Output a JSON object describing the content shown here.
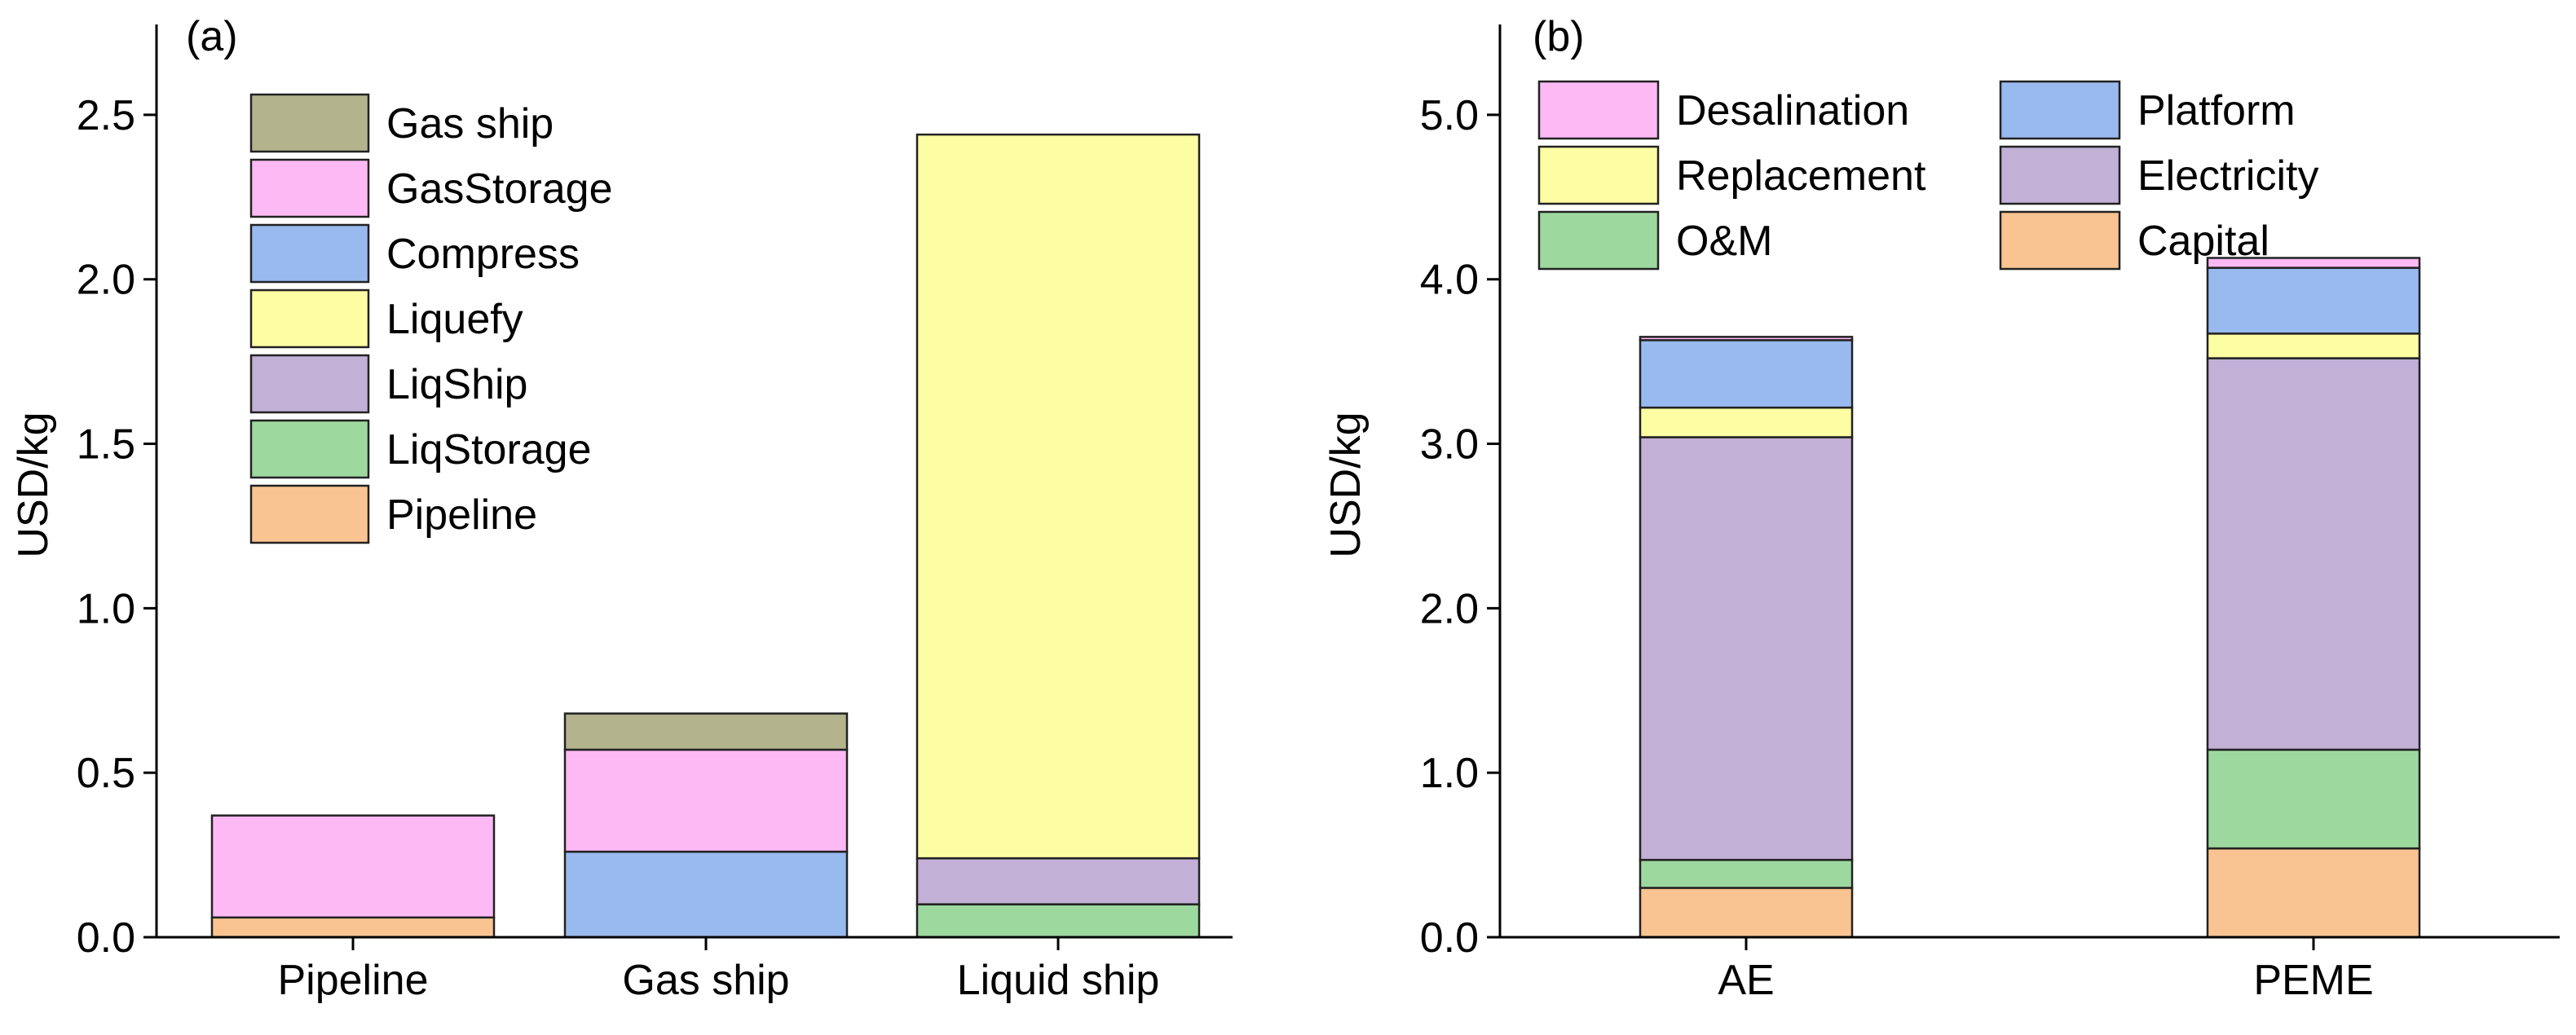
{
  "colors": {
    "Gas ship": "#b3b38d",
    "GasStorage": "#fdb9f4",
    "Compress": "#99baef",
    "Liquefy": "#fdfda3",
    "LiqShip": "#c2b0d6",
    "LiqStorage": "#9dd99f",
    "Pipeline": "#f9c491",
    "Desalination": "#fdb9f4",
    "Replacement": "#fdfda3",
    "O&M": "#9dd99f",
    "Platform": "#99baef",
    "Electricity": "#c2b0d6",
    "Capital": "#f9c491",
    "axis": "#000000",
    "bar_edge": "#222222"
  },
  "chart_data": [
    {
      "panel": "a",
      "panel_label": "(a)",
      "type": "bar",
      "stacked": true,
      "title": "",
      "xlabel": "",
      "ylabel": "USD/kg",
      "ylim": [
        0,
        2.75
      ],
      "yticks": [
        0.0,
        0.5,
        1.0,
        1.5,
        2.0,
        2.5
      ],
      "ytick_labels": [
        "0.0",
        "0.5",
        "1.0",
        "1.5",
        "2.0",
        "2.5"
      ],
      "categories": [
        "Pipeline",
        "Gas ship",
        "Liquid ship"
      ],
      "series": [
        {
          "name": "Pipeline",
          "values": [
            0.06,
            0.0,
            0.0
          ]
        },
        {
          "name": "LiqStorage",
          "values": [
            0.0,
            0.0,
            0.1
          ]
        },
        {
          "name": "LiqShip",
          "values": [
            0.0,
            0.0,
            0.14
          ]
        },
        {
          "name": "Liquefy",
          "values": [
            0.0,
            0.0,
            2.2
          ]
        },
        {
          "name": "Compress",
          "values": [
            0.0,
            0.26,
            0.0
          ]
        },
        {
          "name": "GasStorage",
          "values": [
            0.31,
            0.31,
            0.0
          ]
        },
        {
          "name": "Gas ship",
          "values": [
            0.0,
            0.11,
            0.0
          ]
        }
      ],
      "legend": [
        "Gas ship",
        "GasStorage",
        "Compress",
        "Liquefy",
        "LiqShip",
        "LiqStorage",
        "Pipeline"
      ],
      "legend_position": "top-left"
    },
    {
      "panel": "b",
      "panel_label": "(b)",
      "type": "bar",
      "stacked": true,
      "title": "",
      "xlabel": "",
      "ylabel": "USD/kg",
      "ylim": [
        0,
        5.5
      ],
      "yticks": [
        0.0,
        1.0,
        2.0,
        3.0,
        4.0,
        5.0
      ],
      "ytick_labels": [
        "0.0",
        "1.0",
        "2.0",
        "3.0",
        "4.0",
        "5.0"
      ],
      "categories": [
        "AE",
        "PEME"
      ],
      "series": [
        {
          "name": "Capital",
          "values": [
            0.3,
            0.54
          ]
        },
        {
          "name": "O&M",
          "values": [
            0.17,
            0.6
          ]
        },
        {
          "name": "Electricity",
          "values": [
            2.57,
            2.38
          ]
        },
        {
          "name": "Replacement",
          "values": [
            0.18,
            0.15
          ]
        },
        {
          "name": "Platform",
          "values": [
            0.41,
            0.4
          ]
        },
        {
          "name": "Desalination",
          "values": [
            0.02,
            0.06
          ]
        }
      ],
      "legend": [
        "Desalination",
        "Platform",
        "Replacement",
        "Electricity",
        "O&M",
        "Capital"
      ],
      "legend_columns": 2,
      "legend_position": "top-left"
    }
  ]
}
